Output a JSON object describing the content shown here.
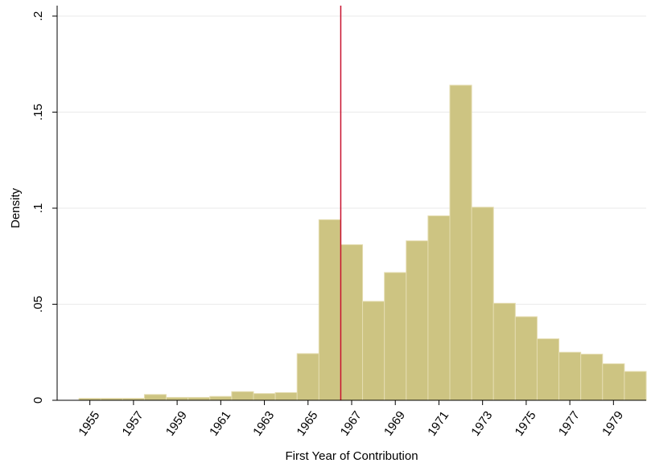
{
  "chart_data": {
    "type": "histogram",
    "x_label": "First Year of Contribution",
    "y_label": "Density",
    "bins": [
      1954.5,
      1955.5,
      1956.5,
      1957.5,
      1958.5,
      1959.5,
      1960.5,
      1961.5,
      1962.5,
      1963.5,
      1964.5,
      1965.5,
      1966.5,
      1967.5,
      1968.5,
      1969.5,
      1970.5,
      1971.5,
      1972.5,
      1973.5,
      1974.5,
      1975.5,
      1976.5,
      1977.5,
      1978.5,
      1979.5,
      1980.5
    ],
    "values": [
      0.001,
      0.001,
      0.001,
      0.003,
      0.0015,
      0.0015,
      0.002,
      0.0045,
      0.0035,
      0.004,
      0.0243,
      0.094,
      0.081,
      0.0515,
      0.0665,
      0.083,
      0.096,
      0.164,
      0.1005,
      0.0505,
      0.0435,
      0.032,
      0.025,
      0.024,
      0.019,
      0.015
    ],
    "color": "#cdc482",
    "edge_color": "#e4dcb0",
    "vline": 1966.5,
    "vline_color": "#c8102e",
    "xlim": [
      1953.5,
      1980.5
    ],
    "ylim": [
      0,
      0.2
    ],
    "xticks": [
      1955,
      1957,
      1959,
      1961,
      1963,
      1965,
      1967,
      1969,
      1971,
      1973,
      1975,
      1977,
      1979
    ],
    "yticks": [
      0,
      {
        "value": 0.05,
        "label": ".05"
      },
      {
        "value": 0.1,
        "label": ".1"
      },
      {
        "value": 0.15,
        "label": ".15"
      },
      {
        "value": 0.2,
        "label": ".2"
      }
    ],
    "grid": true
  }
}
